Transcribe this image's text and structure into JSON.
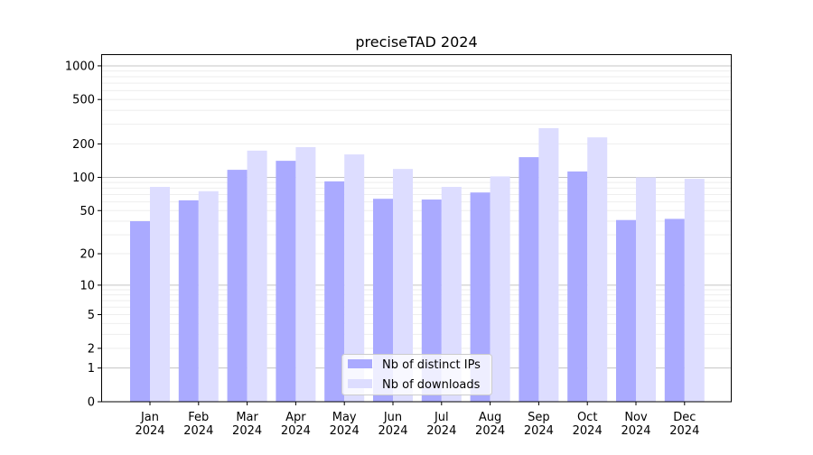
{
  "chart_data": {
    "type": "bar",
    "title": "preciseTAD 2024",
    "xlabel": "",
    "ylabel": "",
    "yscale": "symlog",
    "ylim": [
      0,
      1270
    ],
    "grid": true,
    "legend_position": "lower-center",
    "categories": [
      "Jan\n2024",
      "Feb\n2024",
      "Mar\n2024",
      "Apr\n2024",
      "May\n2024",
      "Jun\n2024",
      "Jul\n2024",
      "Aug\n2024",
      "Sep\n2024",
      "Oct\n2024",
      "Nov\n2024",
      "Dec\n2024"
    ],
    "ytick_values": [
      0,
      1,
      2,
      5,
      10,
      20,
      50,
      100,
      200,
      500,
      1000
    ],
    "ytick_labels": [
      "0",
      "1",
      "2",
      "5",
      "10",
      "20",
      "50",
      "100",
      "200",
      "500",
      "1000"
    ],
    "series": [
      {
        "name": "Nb of distinct IPs",
        "color": "#aaaaff",
        "values": [
          40,
          62,
          117,
          141,
          92,
          64,
          63,
          73,
          152,
          113,
          41,
          42
        ]
      },
      {
        "name": "Nb of downloads",
        "color": "#ddddff",
        "values": [
          82,
          75,
          174,
          187,
          161,
          119,
          82,
          102,
          277,
          229,
          100,
          97
        ]
      }
    ]
  }
}
